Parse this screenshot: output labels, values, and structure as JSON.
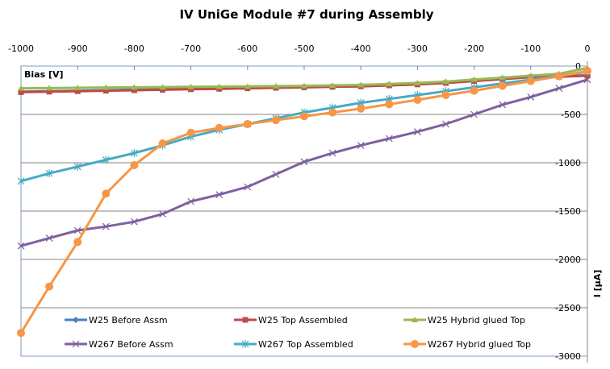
{
  "chart_data": {
    "type": "line",
    "title": "IV UniGe Module #7 during Assembly",
    "xlabel": "Bias [V]",
    "ylabel": "I [µA]",
    "xlim": [
      -1000,
      0
    ],
    "ylim": [
      -3000,
      0
    ],
    "xticks": [
      "-1000",
      "-900",
      "-800",
      "-700",
      "-600",
      "-500",
      "-400",
      "-300",
      "-200",
      "-100",
      "0"
    ],
    "yticks": [
      "0",
      "-500",
      "-1000",
      "-1500",
      "-2000",
      "-2500",
      "-3000"
    ],
    "grid": "horizontal",
    "legend_placement": "bottom-inside",
    "x": [
      -1000,
      -950,
      -900,
      -850,
      -800,
      -750,
      -700,
      -650,
      -600,
      -550,
      -500,
      -450,
      -400,
      -350,
      -300,
      -250,
      -200,
      -150,
      -100,
      -50,
      0
    ],
    "series": [
      {
        "name": "W25 Before Assm",
        "color": "#4a7ebb",
        "marker": "diamond",
        "values": [
          -265,
          -260,
          -255,
          -250,
          -245,
          -240,
          -235,
          -230,
          -225,
          -220,
          -215,
          -210,
          -205,
          -195,
          -185,
          -170,
          -150,
          -130,
          -110,
          -105,
          -95
        ]
      },
      {
        "name": "W25 Top Assembled",
        "color": "#be4b48",
        "marker": "square",
        "values": [
          -270,
          -265,
          -260,
          -255,
          -250,
          -245,
          -240,
          -235,
          -230,
          -225,
          -220,
          -215,
          -210,
          -200,
          -190,
          -175,
          -155,
          -135,
          -115,
          -110,
          -100
        ]
      },
      {
        "name": "W25 Hybrid glued Top",
        "color": "#98b954",
        "marker": "triangle",
        "values": [
          -230,
          -228,
          -225,
          -222,
          -220,
          -218,
          -215,
          -212,
          -210,
          -207,
          -205,
          -200,
          -195,
          -185,
          -175,
          -160,
          -140,
          -120,
          -100,
          -80,
          -20
        ]
      },
      {
        "name": "W267 Before Assm",
        "color": "#7d60a0",
        "marker": "x",
        "values": [
          -1860,
          -1780,
          -1700,
          -1660,
          -1610,
          -1530,
          -1400,
          -1330,
          -1250,
          -1120,
          -990,
          -900,
          -820,
          -750,
          -680,
          -600,
          -500,
          -400,
          -320,
          -230,
          -140
        ]
      },
      {
        "name": "W267 Top Assembled",
        "color": "#46aac5",
        "marker": "star",
        "values": [
          -1190,
          -1110,
          -1040,
          -970,
          -900,
          -820,
          -730,
          -660,
          -600,
          -540,
          -480,
          -430,
          -380,
          -340,
          -300,
          -260,
          -220,
          -180,
          -140,
          -100,
          -60
        ]
      },
      {
        "name": "W267 Hybrid glued Top",
        "color": "#f79646",
        "marker": "circle",
        "values": [
          -2760,
          -2280,
          -1820,
          -1320,
          -1025,
          -800,
          -690,
          -640,
          -600,
          -560,
          -520,
          -480,
          -440,
          -395,
          -350,
          -300,
          -255,
          -205,
          -155,
          -105,
          -50
        ]
      }
    ]
  }
}
